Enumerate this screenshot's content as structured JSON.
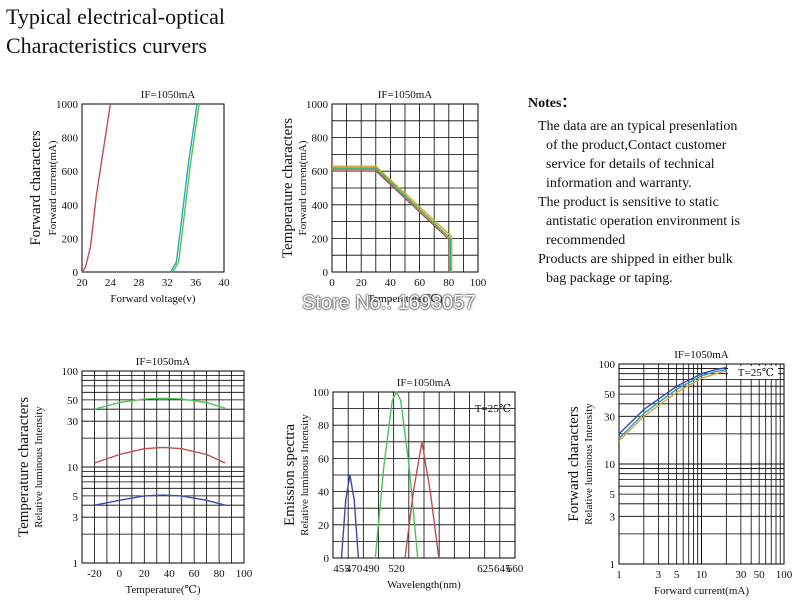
{
  "heading": {
    "line1": "Typical electrical-optical",
    "line2": "Characteristics curvers"
  },
  "notes": {
    "title": "Notes：",
    "lines": [
      {
        "text": "The data are an typical presenlation",
        "indent": 1
      },
      {
        "text": "of the product,Contact customer",
        "indent": 2
      },
      {
        "text": "service for details of technical",
        "indent": 2
      },
      {
        "text": "information and warranty.",
        "indent": 2
      },
      {
        "text": "The product is sensitive to static",
        "indent": 1
      },
      {
        "text": "antistatic operation environment is",
        "indent": 2
      },
      {
        "text": "recommended",
        "indent": 2
      },
      {
        "text": "Products are shipped in either bulk",
        "indent": 1
      },
      {
        "text": "bag package or taping.",
        "indent": 2
      }
    ]
  },
  "watermark": "Store No.: 1693057",
  "colors": {
    "red": "#c0504d",
    "green": "#4fc24f",
    "blue": "#3a4aa8",
    "teal": "#2aa6b8",
    "orange": "#e0a030",
    "grid": "#000000"
  },
  "chart_data": [
    {
      "type": "line",
      "title": "IF=1050mA",
      "ylabel_main": "Forward characters",
      "ylabel": "Forward current(mA)",
      "xlabel": "Forward voltage(v)",
      "xlim": [
        20,
        40
      ],
      "ylim": [
        0,
        1000
      ],
      "xticks": [
        "20",
        "24",
        "28",
        "32",
        "36",
        "40"
      ],
      "yticks": [
        "0",
        "200",
        "400",
        "600",
        "800",
        "1000"
      ],
      "grid": false,
      "series": [
        {
          "color": "red",
          "x": [
            20,
            20.5,
            21.2,
            22,
            24
          ],
          "y": [
            0,
            30,
            150,
            450,
            1000
          ]
        },
        {
          "color": "teal",
          "x": [
            32.5,
            33.3,
            34,
            35,
            36.2
          ],
          "y": [
            0,
            60,
            300,
            650,
            1000
          ]
        },
        {
          "color": "green",
          "x": [
            32.8,
            33.6,
            34.3,
            35.3,
            36.5
          ],
          "y": [
            0,
            60,
            300,
            650,
            1000
          ]
        }
      ]
    },
    {
      "type": "line",
      "title": "IF=1050mA",
      "ylabel_main": "Temperature characters",
      "ylabel": "Forward current(mA)",
      "xlabel": "Temperature(℃)",
      "xlim": [
        0,
        100
      ],
      "ylim": [
        0,
        1000
      ],
      "xticks": [
        "0",
        "20",
        "40",
        "60",
        "80",
        "100"
      ],
      "yticks": [
        "0",
        "200",
        "400",
        "600",
        "800",
        "1000"
      ],
      "grid": true,
      "series": [
        {
          "color": "orange",
          "x": [
            0,
            30,
            82,
            82
          ],
          "y": [
            630,
            630,
            210,
            0
          ]
        },
        {
          "color": "teal",
          "x": [
            0,
            30,
            81,
            81
          ],
          "y": [
            612,
            612,
            200,
            0
          ]
        },
        {
          "color": "red",
          "x": [
            0,
            30,
            80,
            80
          ],
          "y": [
            602,
            602,
            195,
            0
          ]
        },
        {
          "color": "green",
          "x": [
            0,
            30,
            80.5,
            80.5
          ],
          "y": [
            620,
            620,
            205,
            0
          ]
        }
      ]
    },
    {
      "type": "line",
      "title": "IF=1050mA",
      "ylabel_main": "Temperature characters",
      "ylabel": "Relative luminous Intensity",
      "xlabel": "Temperature(℃)",
      "xlim": [
        -30,
        100
      ],
      "ylim": [
        1,
        100
      ],
      "yscale": "log",
      "xticks": [
        "-20",
        "0",
        "20",
        "40",
        "60",
        "80",
        "100"
      ],
      "yticks": [
        "1",
        "3",
        "5",
        "10",
        "30",
        "50",
        "100"
      ],
      "grid": true,
      "series": [
        {
          "color": "green",
          "x": [
            -20,
            0,
            20,
            35,
            50,
            70,
            85
          ],
          "y": [
            40,
            47,
            51,
            52,
            51,
            47,
            41
          ]
        },
        {
          "color": "red",
          "x": [
            -20,
            0,
            20,
            35,
            50,
            70,
            85
          ],
          "y": [
            11,
            13.5,
            15.5,
            16,
            15.5,
            13.5,
            11
          ]
        },
        {
          "color": "blue",
          "x": [
            -20,
            0,
            20,
            35,
            50,
            70,
            85
          ],
          "y": [
            4,
            4.5,
            5,
            5.1,
            5,
            4.5,
            4
          ]
        }
      ]
    },
    {
      "type": "line",
      "title": "IF=1050mA",
      "annotation": "T=25℃",
      "ylabel_main": "Emission spectra",
      "ylabel": "Relative luminous Intensity",
      "xlabel": "Wavelength(nm)",
      "xlim": [
        445,
        660
      ],
      "ylim": [
        0,
        100
      ],
      "xticks": [
        "455",
        "470",
        "490",
        "520",
        "625",
        "645",
        "660"
      ],
      "xtick_values": [
        455,
        470,
        490,
        520,
        625,
        645,
        660
      ],
      "yticks": [
        "0",
        "20",
        "40",
        "60",
        "80",
        "100"
      ],
      "grid": true,
      "series": [
        {
          "color": "blue",
          "x": [
            455,
            460,
            465,
            470,
            475
          ],
          "y": [
            0,
            35,
            50,
            35,
            0
          ]
        },
        {
          "color": "green",
          "x": [
            495,
            505,
            515,
            520,
            525,
            535,
            545
          ],
          "y": [
            0,
            55,
            95,
            100,
            95,
            55,
            0
          ]
        },
        {
          "color": "red",
          "x": [
            530,
            540,
            550,
            560,
            570
          ],
          "y": [
            0,
            40,
            70,
            40,
            0
          ]
        }
      ]
    },
    {
      "type": "line",
      "title": "IF=1050mA",
      "annotation": "T=25℃",
      "ylabel_main": "Forward characters",
      "ylabel": "Relative luminous Intensity",
      "xlabel": "Forward current(mA)",
      "xlim": [
        1,
        100
      ],
      "ylim": [
        1,
        100
      ],
      "xscale": "log",
      "yscale": "log",
      "xticks": [
        "1",
        "3",
        "5",
        "10",
        "30",
        "50",
        "100"
      ],
      "yticks": [
        "1",
        "3",
        "5",
        "10",
        "30",
        "50",
        "100"
      ],
      "grid": true,
      "series": [
        {
          "color": "blue",
          "x": [
            1,
            2,
            5,
            10,
            15,
            20
          ],
          "y": [
            20,
            35,
            60,
            80,
            88,
            92
          ]
        },
        {
          "color": "teal",
          "x": [
            1,
            2,
            5,
            10,
            15,
            20
          ],
          "y": [
            18,
            32,
            56,
            76,
            84,
            88
          ]
        },
        {
          "color": "orange",
          "x": [
            1,
            2,
            5,
            10,
            15,
            20
          ],
          "y": [
            17,
            30,
            52,
            72,
            80,
            85
          ]
        }
      ]
    }
  ]
}
